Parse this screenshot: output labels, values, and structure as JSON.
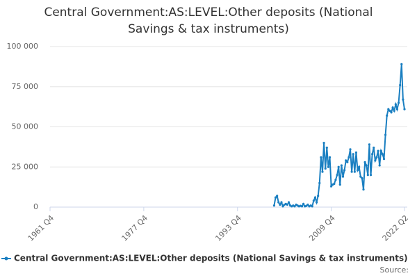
{
  "chart_data": {
    "type": "line",
    "title": "Central Government:AS:LEVEL:Other deposits (National Savings & tax instruments)",
    "source_label": "Source:",
    "x": [
      "2000 Q1",
      "2000 Q2",
      "2000 Q3",
      "2000 Q4",
      "2001 Q1",
      "2001 Q2",
      "2001 Q3",
      "2001 Q4",
      "2002 Q1",
      "2002 Q2",
      "2002 Q3",
      "2002 Q4",
      "2003 Q1",
      "2003 Q2",
      "2003 Q3",
      "2003 Q4",
      "2004 Q1",
      "2004 Q2",
      "2004 Q3",
      "2004 Q4",
      "2005 Q1",
      "2005 Q2",
      "2005 Q3",
      "2005 Q4",
      "2006 Q1",
      "2006 Q2",
      "2006 Q3",
      "2006 Q4",
      "2007 Q1",
      "2007 Q2",
      "2007 Q3",
      "2007 Q4",
      "2008 Q1",
      "2008 Q2",
      "2008 Q3",
      "2008 Q4",
      "2009 Q1",
      "2009 Q2",
      "2009 Q3",
      "2009 Q4",
      "2010 Q1",
      "2010 Q2",
      "2010 Q3",
      "2010 Q4",
      "2011 Q1",
      "2011 Q2",
      "2011 Q3",
      "2011 Q4",
      "2012 Q1",
      "2012 Q2",
      "2012 Q3",
      "2012 Q4",
      "2013 Q1",
      "2013 Q2",
      "2013 Q3",
      "2013 Q4",
      "2014 Q1",
      "2014 Q2",
      "2014 Q3",
      "2014 Q4",
      "2015 Q1",
      "2015 Q2",
      "2015 Q3",
      "2015 Q4",
      "2016 Q1",
      "2016 Q2",
      "2016 Q3",
      "2016 Q4",
      "2017 Q1",
      "2017 Q2",
      "2017 Q3",
      "2017 Q4",
      "2018 Q1",
      "2018 Q2",
      "2018 Q3",
      "2018 Q4",
      "2019 Q1",
      "2019 Q2",
      "2019 Q3",
      "2019 Q4",
      "2020 Q1",
      "2020 Q2",
      "2020 Q3",
      "2020 Q4",
      "2021 Q1",
      "2021 Q2",
      "2021 Q3",
      "2021 Q4",
      "2022 Q1",
      "2022 Q2"
    ],
    "series": [
      {
        "name": "Central Government:AS:LEVEL:Other deposits (National Savings & tax instruments)",
        "color": "#1a7fc1",
        "values": [
          1000,
          6000,
          7000,
          3000,
          1500,
          3000,
          500,
          1500,
          2000,
          1500,
          3000,
          1000,
          500,
          1000,
          500,
          1500,
          1000,
          500,
          800,
          500,
          2000,
          500,
          800,
          1500,
          500,
          1000,
          500,
          4000,
          6000,
          3000,
          7000,
          15000,
          31000,
          22000,
          40000,
          24000,
          37000,
          25000,
          31000,
          13000,
          14000,
          14500,
          17000,
          20000,
          25000,
          14000,
          26000,
          19000,
          23000,
          29000,
          28000,
          31000,
          36000,
          22000,
          33000,
          22000,
          34000,
          23000,
          25000,
          19000,
          18000,
          11000,
          28000,
          26000,
          20000,
          39000,
          20000,
          33000,
          37000,
          29000,
          31000,
          35000,
          26000,
          35000,
          33000,
          30000,
          45000,
          57000,
          61000,
          60000,
          59000,
          62000,
          60000,
          64000,
          61000,
          65000,
          76000,
          89000,
          67000,
          61000
        ]
      }
    ],
    "xlim": [
      "1961 Q4",
      "2022 Q2"
    ],
    "xticks": [
      "1961 Q4",
      "1977 Q4",
      "1993 Q4",
      "2009 Q4",
      "2022 Q2"
    ],
    "ylim": [
      0,
      100000
    ],
    "yticks": [
      0,
      {
        "value": 25000,
        "label": "25 000"
      },
      {
        "value": 50000,
        "label": "50 000"
      },
      {
        "value": 75000,
        "label": "75 000"
      },
      {
        "value": 100000,
        "label": "100 000"
      }
    ],
    "grid": true
  }
}
